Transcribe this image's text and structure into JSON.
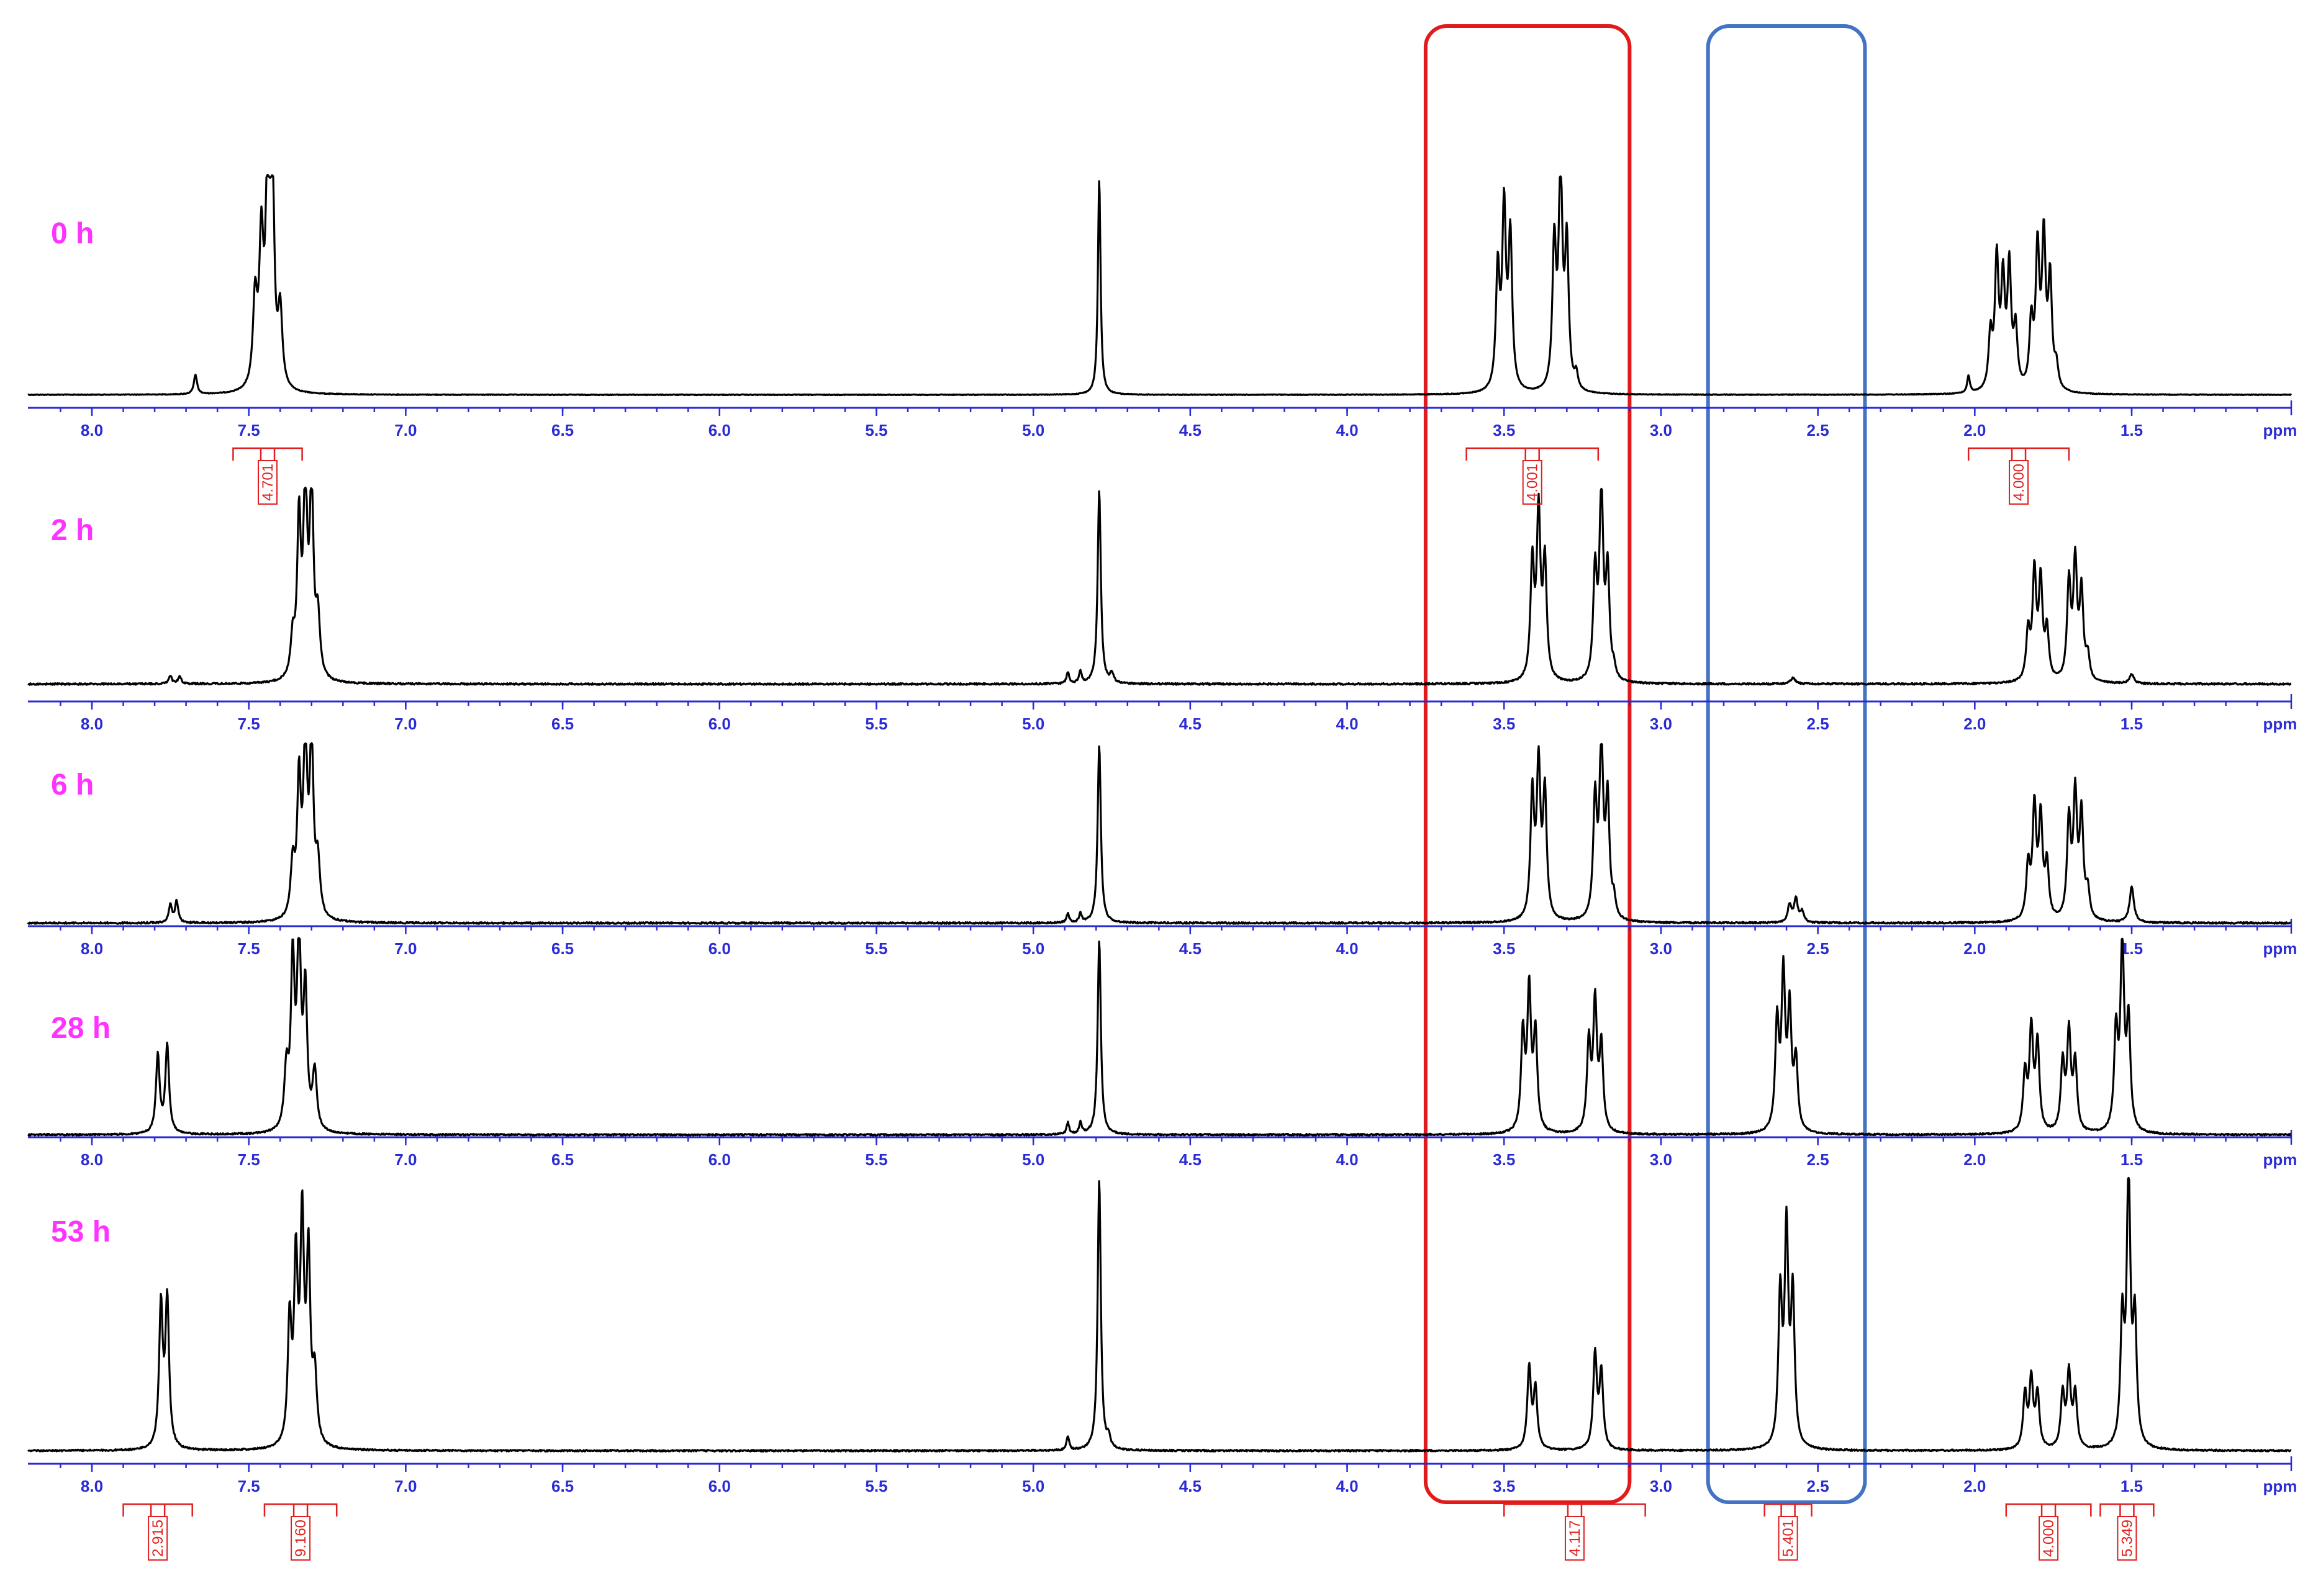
{
  "colors": {
    "axis": "#2b2bd6",
    "spectrum": "#000000",
    "time_label": "#ff33ff",
    "integral": "#e02020",
    "region_a": "#e11b1b",
    "region_b": "#4472c4"
  },
  "chart_data": {
    "type": "line",
    "subtype": "stacked 1H NMR spectra",
    "x_axis": {
      "unit_label": "ppm",
      "reversed": true,
      "xlim": [
        8.2,
        1.0
      ],
      "ticks": [
        8.0,
        7.5,
        7.0,
        6.5,
        6.0,
        5.5,
        5.0,
        4.5,
        4.0,
        3.5,
        3.0,
        2.5,
        2.0,
        1.5
      ],
      "tick_labels": [
        "8.0",
        "7.5",
        "7.0",
        "6.5",
        "6.0",
        "5.5",
        "5.0",
        "4.5",
        "4.0",
        "3.5",
        "3.0",
        "2.5",
        "2.0",
        "1.5"
      ]
    },
    "highlight_regions": [
      {
        "x_range": [
          3.1,
          3.75
        ],
        "color": "#e11b1b"
      },
      {
        "x_range": [
          2.35,
          2.85
        ],
        "color": "#4472c4"
      }
    ],
    "series": [
      {
        "name": "0 h",
        "peaks": [
          {
            "ppm": 7.67,
            "height": 0.09,
            "width": 0.006
          },
          {
            "ppm": 7.48,
            "height": 0.4,
            "width": 0.008
          },
          {
            "ppm": 7.46,
            "height": 0.66,
            "width": 0.008
          },
          {
            "ppm": 7.44,
            "height": 1.0,
            "width": 0.007
          },
          {
            "ppm": 7.425,
            "height": 1.0,
            "width": 0.007
          },
          {
            "ppm": 7.4,
            "height": 0.35,
            "width": 0.008
          },
          {
            "ppm": 4.79,
            "height": 1.0,
            "width": 0.005
          },
          {
            "ppm": 3.52,
            "height": 0.55,
            "width": 0.007
          },
          {
            "ppm": 3.5,
            "height": 0.82,
            "width": 0.007
          },
          {
            "ppm": 3.48,
            "height": 0.7,
            "width": 0.007
          },
          {
            "ppm": 3.34,
            "height": 0.66,
            "width": 0.007
          },
          {
            "ppm": 3.32,
            "height": 1.0,
            "width": 0.007
          },
          {
            "ppm": 3.3,
            "height": 0.66,
            "width": 0.007
          },
          {
            "ppm": 3.27,
            "height": 0.07,
            "width": 0.006
          },
          {
            "ppm": 2.02,
            "height": 0.08,
            "width": 0.005
          },
          {
            "ppm": 1.95,
            "height": 0.25,
            "width": 0.007
          },
          {
            "ppm": 1.93,
            "height": 0.59,
            "width": 0.007
          },
          {
            "ppm": 1.91,
            "height": 0.48,
            "width": 0.007
          },
          {
            "ppm": 1.89,
            "height": 0.55,
            "width": 0.007
          },
          {
            "ppm": 1.87,
            "height": 0.27,
            "width": 0.007
          },
          {
            "ppm": 1.82,
            "height": 0.3,
            "width": 0.007
          },
          {
            "ppm": 1.8,
            "height": 0.63,
            "width": 0.007
          },
          {
            "ppm": 1.78,
            "height": 0.68,
            "width": 0.007
          },
          {
            "ppm": 1.76,
            "height": 0.5,
            "width": 0.007
          },
          {
            "ppm": 1.74,
            "height": 0.1,
            "width": 0.007
          }
        ],
        "integrals": [
          {
            "range": [
              7.55,
              7.33
            ],
            "value": "4.701"
          },
          {
            "range": [
              3.62,
              3.2
            ],
            "value": "4.001"
          },
          {
            "range": [
              2.02,
              1.7
            ],
            "value": "4.000"
          }
        ]
      },
      {
        "name": "2 h",
        "peaks": [
          {
            "ppm": 7.75,
            "height": 0.04,
            "width": 0.006
          },
          {
            "ppm": 7.72,
            "height": 0.04,
            "width": 0.006
          },
          {
            "ppm": 7.36,
            "height": 0.2,
            "width": 0.008
          },
          {
            "ppm": 7.34,
            "height": 0.8,
            "width": 0.007
          },
          {
            "ppm": 7.32,
            "height": 1.0,
            "width": 0.007
          },
          {
            "ppm": 7.3,
            "height": 1.0,
            "width": 0.007
          },
          {
            "ppm": 7.28,
            "height": 0.3,
            "width": 0.008
          },
          {
            "ppm": 4.89,
            "height": 0.06,
            "width": 0.005
          },
          {
            "ppm": 4.85,
            "height": 0.06,
            "width": 0.005
          },
          {
            "ppm": 4.79,
            "height": 1.0,
            "width": 0.006
          },
          {
            "ppm": 4.75,
            "height": 0.05,
            "width": 0.006
          },
          {
            "ppm": 3.41,
            "height": 0.6,
            "width": 0.007
          },
          {
            "ppm": 3.39,
            "height": 0.85,
            "width": 0.007
          },
          {
            "ppm": 3.37,
            "height": 0.6,
            "width": 0.007
          },
          {
            "ppm": 3.21,
            "height": 0.55,
            "width": 0.007
          },
          {
            "ppm": 3.19,
            "height": 0.98,
            "width": 0.007
          },
          {
            "ppm": 3.17,
            "height": 0.55,
            "width": 0.007
          },
          {
            "ppm": 3.15,
            "height": 0.05,
            "width": 0.006
          },
          {
            "ppm": 2.58,
            "height": 0.03,
            "width": 0.01
          },
          {
            "ppm": 1.83,
            "height": 0.25,
            "width": 0.007
          },
          {
            "ppm": 1.81,
            "height": 0.55,
            "width": 0.007
          },
          {
            "ppm": 1.79,
            "height": 0.5,
            "width": 0.007
          },
          {
            "ppm": 1.77,
            "height": 0.25,
            "width": 0.007
          },
          {
            "ppm": 1.7,
            "height": 0.5,
            "width": 0.007
          },
          {
            "ppm": 1.68,
            "height": 0.6,
            "width": 0.007
          },
          {
            "ppm": 1.66,
            "height": 0.45,
            "width": 0.007
          },
          {
            "ppm": 1.64,
            "height": 0.12,
            "width": 0.007
          },
          {
            "ppm": 1.5,
            "height": 0.05,
            "width": 0.008
          }
        ],
        "integrals": []
      },
      {
        "name": "6 h",
        "peaks": [
          {
            "ppm": 7.75,
            "height": 0.1,
            "width": 0.006
          },
          {
            "ppm": 7.73,
            "height": 0.12,
            "width": 0.006
          },
          {
            "ppm": 7.36,
            "height": 0.3,
            "width": 0.008
          },
          {
            "ppm": 7.34,
            "height": 0.75,
            "width": 0.007
          },
          {
            "ppm": 7.32,
            "height": 1.0,
            "width": 0.007
          },
          {
            "ppm": 7.3,
            "height": 1.0,
            "width": 0.007
          },
          {
            "ppm": 7.28,
            "height": 0.3,
            "width": 0.008
          },
          {
            "ppm": 4.89,
            "height": 0.05,
            "width": 0.005
          },
          {
            "ppm": 4.85,
            "height": 0.05,
            "width": 0.005
          },
          {
            "ppm": 4.79,
            "height": 1.0,
            "width": 0.006
          },
          {
            "ppm": 3.41,
            "height": 0.7,
            "width": 0.007
          },
          {
            "ppm": 3.39,
            "height": 0.84,
            "width": 0.007
          },
          {
            "ppm": 3.37,
            "height": 0.7,
            "width": 0.007
          },
          {
            "ppm": 3.21,
            "height": 0.66,
            "width": 0.007
          },
          {
            "ppm": 3.19,
            "height": 0.98,
            "width": 0.007
          },
          {
            "ppm": 3.17,
            "height": 0.66,
            "width": 0.007
          },
          {
            "ppm": 3.15,
            "height": 0.1,
            "width": 0.006
          },
          {
            "ppm": 2.59,
            "height": 0.1,
            "width": 0.007
          },
          {
            "ppm": 2.57,
            "height": 0.13,
            "width": 0.007
          },
          {
            "ppm": 2.55,
            "height": 0.06,
            "width": 0.007
          },
          {
            "ppm": 1.83,
            "height": 0.3,
            "width": 0.007
          },
          {
            "ppm": 1.81,
            "height": 0.62,
            "width": 0.007
          },
          {
            "ppm": 1.79,
            "height": 0.56,
            "width": 0.007
          },
          {
            "ppm": 1.77,
            "height": 0.3,
            "width": 0.007
          },
          {
            "ppm": 1.7,
            "height": 0.55,
            "width": 0.007
          },
          {
            "ppm": 1.68,
            "height": 0.68,
            "width": 0.007
          },
          {
            "ppm": 1.66,
            "height": 0.58,
            "width": 0.007
          },
          {
            "ppm": 1.64,
            "height": 0.15,
            "width": 0.007
          },
          {
            "ppm": 1.5,
            "height": 0.2,
            "width": 0.008
          }
        ],
        "integrals": []
      },
      {
        "name": "28 h",
        "peaks": [
          {
            "ppm": 7.79,
            "height": 0.4,
            "width": 0.007
          },
          {
            "ppm": 7.76,
            "height": 0.45,
            "width": 0.007
          },
          {
            "ppm": 7.38,
            "height": 0.3,
            "width": 0.008
          },
          {
            "ppm": 7.36,
            "height": 0.85,
            "width": 0.007
          },
          {
            "ppm": 7.34,
            "height": 1.0,
            "width": 0.007
          },
          {
            "ppm": 7.32,
            "height": 0.7,
            "width": 0.007
          },
          {
            "ppm": 7.29,
            "height": 0.3,
            "width": 0.008
          },
          {
            "ppm": 4.89,
            "height": 0.06,
            "width": 0.005
          },
          {
            "ppm": 4.85,
            "height": 0.06,
            "width": 0.005
          },
          {
            "ppm": 4.79,
            "height": 1.0,
            "width": 0.006
          },
          {
            "ppm": 3.44,
            "height": 0.5,
            "width": 0.007
          },
          {
            "ppm": 3.42,
            "height": 0.71,
            "width": 0.007
          },
          {
            "ppm": 3.4,
            "height": 0.5,
            "width": 0.007
          },
          {
            "ppm": 3.23,
            "height": 0.45,
            "width": 0.007
          },
          {
            "ppm": 3.21,
            "height": 0.65,
            "width": 0.007
          },
          {
            "ppm": 3.19,
            "height": 0.43,
            "width": 0.007
          },
          {
            "ppm": 2.63,
            "height": 0.55,
            "width": 0.007
          },
          {
            "ppm": 2.61,
            "height": 0.78,
            "width": 0.007
          },
          {
            "ppm": 2.59,
            "height": 0.6,
            "width": 0.007
          },
          {
            "ppm": 2.57,
            "height": 0.35,
            "width": 0.007
          },
          {
            "ppm": 1.84,
            "height": 0.3,
            "width": 0.007
          },
          {
            "ppm": 1.82,
            "height": 0.52,
            "width": 0.007
          },
          {
            "ppm": 1.8,
            "height": 0.45,
            "width": 0.007
          },
          {
            "ppm": 1.72,
            "height": 0.35,
            "width": 0.007
          },
          {
            "ppm": 1.7,
            "height": 0.5,
            "width": 0.007
          },
          {
            "ppm": 1.68,
            "height": 0.35,
            "width": 0.007
          },
          {
            "ppm": 1.55,
            "height": 0.5,
            "width": 0.007
          },
          {
            "ppm": 1.53,
            "height": 0.95,
            "width": 0.007
          },
          {
            "ppm": 1.51,
            "height": 0.55,
            "width": 0.007
          }
        ],
        "integrals": []
      },
      {
        "name": "53 h",
        "peaks": [
          {
            "ppm": 7.78,
            "height": 0.52,
            "width": 0.007
          },
          {
            "ppm": 7.76,
            "height": 0.54,
            "width": 0.007
          },
          {
            "ppm": 7.37,
            "height": 0.45,
            "width": 0.007
          },
          {
            "ppm": 7.35,
            "height": 0.65,
            "width": 0.007
          },
          {
            "ppm": 7.33,
            "height": 0.8,
            "width": 0.007
          },
          {
            "ppm": 7.31,
            "height": 0.68,
            "width": 0.007
          },
          {
            "ppm": 7.29,
            "height": 0.25,
            "width": 0.008
          },
          {
            "ppm": 4.89,
            "height": 0.05,
            "width": 0.005
          },
          {
            "ppm": 4.79,
            "height": 1.0,
            "width": 0.006
          },
          {
            "ppm": 4.76,
            "height": 0.04,
            "width": 0.006
          },
          {
            "ppm": 3.42,
            "height": 0.3,
            "width": 0.007
          },
          {
            "ppm": 3.4,
            "height": 0.22,
            "width": 0.007
          },
          {
            "ppm": 3.21,
            "height": 0.35,
            "width": 0.007
          },
          {
            "ppm": 3.19,
            "height": 0.28,
            "width": 0.007
          },
          {
            "ppm": 2.62,
            "height": 0.55,
            "width": 0.007
          },
          {
            "ppm": 2.6,
            "height": 0.78,
            "width": 0.007
          },
          {
            "ppm": 2.58,
            "height": 0.55,
            "width": 0.007
          },
          {
            "ppm": 1.84,
            "height": 0.2,
            "width": 0.007
          },
          {
            "ppm": 1.82,
            "height": 0.25,
            "width": 0.007
          },
          {
            "ppm": 1.8,
            "height": 0.2,
            "width": 0.007
          },
          {
            "ppm": 1.72,
            "height": 0.2,
            "width": 0.007
          },
          {
            "ppm": 1.7,
            "height": 0.27,
            "width": 0.007
          },
          {
            "ppm": 1.68,
            "height": 0.2,
            "width": 0.007
          },
          {
            "ppm": 1.53,
            "height": 0.45,
            "width": 0.007
          },
          {
            "ppm": 1.51,
            "height": 1.0,
            "width": 0.007
          },
          {
            "ppm": 1.49,
            "height": 0.45,
            "width": 0.007
          }
        ],
        "integrals": [
          {
            "range": [
              7.9,
              7.68
            ],
            "value": "2.915"
          },
          {
            "range": [
              7.45,
              7.22
            ],
            "value": "9.160"
          },
          {
            "range": [
              3.5,
              3.05
            ],
            "value": "4.117"
          },
          {
            "range": [
              2.67,
              2.52
            ],
            "value": "5.401"
          },
          {
            "range": [
              1.9,
              1.63
            ],
            "value": "4.000"
          },
          {
            "range": [
              1.6,
              1.43
            ],
            "value": "5.349"
          }
        ]
      }
    ]
  }
}
